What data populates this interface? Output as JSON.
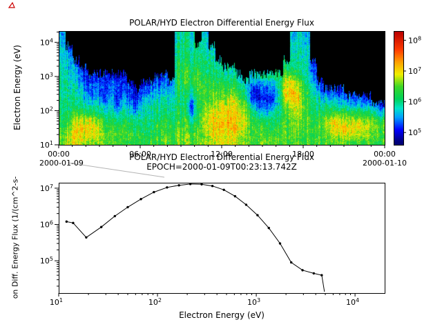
{
  "figure": {
    "bg_color": "#ffffff",
    "connector_line_color": "#b3b3b3",
    "red_marker_color": "#cc0000"
  },
  "chart_data": [
    {
      "type": "heatmap",
      "title": "POLAR/HYD  Electron Differential Energy Flux",
      "ylabel": "Electron Energy (eV)",
      "x_axis": {
        "hours_range": [
          0,
          24
        ],
        "tick_hours": [
          0,
          6,
          12,
          18,
          24
        ],
        "tick_labels": [
          "00:00",
          "06:00",
          "12:00",
          "18:00",
          "00:00"
        ],
        "date_left": "2000-01-09",
        "date_right": "2000-01-10"
      },
      "y_axis": {
        "base": "10",
        "log_range": [
          1,
          4.33
        ],
        "tick_exponents": [
          1,
          2,
          3,
          4
        ]
      },
      "colorbar": {
        "base": "10",
        "log_range": [
          4.6,
          8.3
        ],
        "tick_exponents": [
          5,
          6,
          7,
          8
        ]
      },
      "grid_log10_flux": {
        "time_bin_hours": 0.5,
        "energy_log10ev_range": [
          1.0,
          4.33
        ],
        "columns": [
          [
            6.5,
            6.5,
            6.4,
            6.3,
            6.2,
            6.1,
            6.1,
            6.0,
            6.0,
            6.0,
            5.9,
            5.9,
            5.8,
            5.8,
            5.7,
            5.6
          ],
          [
            6.8,
            6.7,
            6.5,
            6.3,
            6.1,
            6.0,
            6.0,
            5.9,
            5.9,
            5.8,
            5.7,
            5.6,
            5.5,
            5.3,
            0,
            0
          ],
          [
            6.9,
            7.0,
            7.0,
            6.8,
            6.3,
            6.0,
            5.9,
            5.8,
            5.7,
            5.6,
            5.4,
            5.2,
            0,
            0,
            0,
            0
          ],
          [
            6.8,
            7.0,
            7.1,
            6.9,
            6.4,
            6.0,
            5.8,
            5.6,
            5.5,
            5.3,
            5.1,
            0,
            0,
            0,
            0,
            0
          ],
          [
            6.7,
            6.9,
            7.0,
            6.8,
            6.2,
            5.8,
            5.5,
            5.3,
            5.2,
            5.1,
            0,
            0,
            0,
            0,
            0,
            0
          ],
          [
            6.6,
            6.8,
            6.9,
            6.6,
            6.1,
            5.9,
            5.6,
            5.4,
            5.3,
            5.1,
            0,
            0,
            0,
            0,
            0,
            0
          ],
          [
            6.5,
            6.6,
            6.5,
            6.3,
            6.0,
            5.6,
            5.2,
            5.1,
            5.2,
            5.2,
            0,
            0,
            0,
            0,
            0,
            0
          ],
          [
            6.5,
            6.5,
            6.4,
            6.2,
            6.0,
            5.8,
            5.8,
            5.5,
            5.3,
            5.1,
            0,
            0,
            0,
            0,
            0,
            0
          ],
          [
            6.4,
            6.5,
            6.4,
            6.1,
            5.8,
            5.3,
            5.1,
            5.2,
            5.3,
            5.0,
            0,
            0,
            0,
            0,
            0,
            0
          ],
          [
            6.4,
            6.4,
            6.3,
            6.1,
            5.9,
            5.7,
            5.4,
            5.2,
            5.1,
            5.0,
            0,
            0,
            0,
            0,
            0,
            0
          ],
          [
            6.3,
            6.4,
            6.2,
            6.0,
            5.8,
            5.5,
            5.2,
            5.1,
            5.0,
            0,
            0,
            0,
            0,
            0,
            0,
            0
          ],
          [
            6.3,
            6.3,
            6.1,
            5.9,
            5.6,
            5.3,
            5.1,
            5.0,
            0,
            0,
            0,
            0,
            0,
            0,
            0,
            0
          ],
          [
            6.3,
            6.2,
            6.1,
            6.0,
            5.9,
            5.8,
            5.6,
            5.3,
            5.1,
            0,
            0,
            0,
            0,
            0,
            0,
            0
          ],
          [
            6.4,
            6.3,
            6.2,
            6.1,
            6.0,
            5.9,
            5.7,
            5.5,
            5.2,
            0,
            0,
            0,
            0,
            0,
            0,
            0
          ],
          [
            6.4,
            6.4,
            6.3,
            6.2,
            6.1,
            6.0,
            5.8,
            5.6,
            5.3,
            5.1,
            0,
            0,
            0,
            0,
            0,
            0
          ],
          [
            6.5,
            6.4,
            6.3,
            6.2,
            6.1,
            6.0,
            5.9,
            5.6,
            5.4,
            5.2,
            0,
            0,
            0,
            0,
            0,
            0
          ],
          [
            6.4,
            6.3,
            6.2,
            6.1,
            6.0,
            5.9,
            5.7,
            5.5,
            5.3,
            0,
            0,
            0,
            0,
            0,
            0,
            0
          ],
          [
            6.5,
            6.5,
            6.4,
            6.3,
            6.2,
            6.1,
            6.0,
            6.0,
            6.1,
            6.2,
            6.2,
            6.1,
            6.0,
            6.0,
            5.9,
            5.8
          ],
          [
            6.6,
            6.6,
            6.5,
            6.4,
            6.3,
            6.2,
            6.2,
            6.3,
            6.4,
            6.4,
            6.3,
            6.2,
            6.2,
            6.1,
            6.0,
            6.0
          ],
          [
            6.5,
            6.4,
            6.3,
            5.9,
            5.4,
            5.2,
            5.5,
            6.0,
            6.2,
            6.3,
            6.2,
            6.1,
            6.0,
            5.9,
            5.9,
            5.8
          ],
          [
            6.6,
            6.5,
            6.4,
            6.3,
            6.2,
            6.2,
            6.3,
            6.4,
            6.5,
            6.4,
            6.3,
            6.2,
            6.1,
            6.0,
            0,
            0
          ],
          [
            6.7,
            6.7,
            6.8,
            6.9,
            6.8,
            6.6,
            6.5,
            6.4,
            6.4,
            6.3,
            6.2,
            6.1,
            6.0,
            5.9,
            5.9,
            5.8
          ],
          [
            6.8,
            6.9,
            7.0,
            7.0,
            6.9,
            6.7,
            6.5,
            6.4,
            6.3,
            6.2,
            6.1,
            6.0,
            5.9,
            5.8,
            0,
            0
          ],
          [
            6.8,
            7.0,
            7.1,
            7.1,
            7.0,
            6.8,
            6.6,
            6.4,
            6.2,
            6.1,
            6.0,
            5.9,
            0,
            0,
            0,
            0
          ],
          [
            6.9,
            7.0,
            7.1,
            7.2,
            7.1,
            6.9,
            6.7,
            6.5,
            6.3,
            6.1,
            5.9,
            0,
            0,
            0,
            0,
            0
          ],
          [
            6.8,
            7.0,
            7.1,
            7.1,
            7.0,
            7.0,
            6.8,
            6.5,
            6.2,
            6.0,
            5.8,
            0,
            0,
            0,
            0,
            0
          ],
          [
            6.7,
            6.9,
            7.0,
            7.0,
            6.9,
            6.8,
            6.6,
            6.3,
            6.0,
            5.8,
            0,
            0,
            0,
            0,
            0,
            0
          ],
          [
            6.6,
            6.7,
            6.8,
            6.8,
            6.7,
            6.5,
            6.2,
            6.0,
            5.8,
            0,
            0,
            0,
            0,
            0,
            0,
            0
          ],
          [
            6.5,
            6.5,
            6.4,
            6.3,
            6.1,
            5.7,
            5.3,
            5.1,
            5.5,
            5.8,
            0,
            0,
            0,
            0,
            0,
            0
          ],
          [
            6.4,
            6.4,
            6.3,
            6.1,
            5.8,
            5.2,
            5.0,
            5.0,
            5.3,
            5.7,
            0,
            0,
            0,
            0,
            0,
            0
          ],
          [
            6.4,
            6.3,
            6.2,
            6.0,
            5.6,
            5.1,
            5.0,
            5.1,
            5.4,
            5.8,
            0,
            0,
            0,
            0,
            0,
            0
          ],
          [
            6.4,
            6.3,
            6.2,
            6.1,
            5.9,
            5.4,
            5.2,
            5.3,
            5.6,
            5.9,
            0,
            0,
            0,
            0,
            0,
            0
          ],
          [
            6.4,
            6.4,
            6.3,
            6.2,
            6.1,
            6.0,
            5.9,
            6.0,
            6.1,
            6.0,
            0,
            0,
            0,
            0,
            0,
            0
          ],
          [
            6.5,
            6.5,
            6.4,
            6.4,
            6.5,
            6.7,
            7.0,
            7.1,
            7.0,
            6.8,
            6.3,
            6.0,
            0,
            0,
            0,
            0
          ],
          [
            6.5,
            6.6,
            6.6,
            6.6,
            6.8,
            7.0,
            7.2,
            7.2,
            7.0,
            6.6,
            6.2,
            6.0,
            5.9,
            5.8,
            5.8,
            5.7
          ],
          [
            6.5,
            6.5,
            6.5,
            6.6,
            6.7,
            6.8,
            6.9,
            6.8,
            6.6,
            6.3,
            6.1,
            6.0,
            5.9,
            5.9,
            5.8,
            5.8
          ],
          [
            6.4,
            6.4,
            6.4,
            6.5,
            6.5,
            6.4,
            6.3,
            6.2,
            6.1,
            6.0,
            5.9,
            5.9,
            5.8,
            5.8,
            5.7,
            5.6
          ],
          [
            6.4,
            6.3,
            6.3,
            6.2,
            6.1,
            6.0,
            5.9,
            5.8,
            5.6,
            5.4,
            5.2,
            5.1,
            0,
            0,
            0,
            0
          ],
          [
            6.4,
            6.4,
            6.5,
            6.4,
            6.2,
            6.0,
            5.8,
            5.5,
            5.2,
            0,
            0,
            0,
            0,
            0,
            0,
            0
          ],
          [
            6.5,
            6.6,
            6.8,
            6.7,
            6.3,
            6.0,
            5.7,
            5.3,
            0,
            0,
            0,
            0,
            0,
            0,
            0,
            0
          ],
          [
            6.5,
            6.8,
            7.0,
            6.9,
            6.4,
            6.0,
            5.6,
            5.2,
            0,
            0,
            0,
            0,
            0,
            0,
            0,
            0
          ],
          [
            6.5,
            6.9,
            7.1,
            6.9,
            6.4,
            5.9,
            5.5,
            5.1,
            0,
            0,
            0,
            0,
            0,
            0,
            0,
            0
          ],
          [
            6.5,
            6.9,
            7.0,
            6.8,
            6.3,
            5.8,
            5.4,
            0,
            0,
            0,
            0,
            0,
            0,
            0,
            0,
            0
          ],
          [
            6.4,
            6.8,
            7.0,
            6.8,
            6.3,
            5.8,
            5.3,
            0,
            0,
            0,
            0,
            0,
            0,
            0,
            0,
            0
          ],
          [
            6.4,
            6.7,
            6.9,
            6.7,
            6.2,
            5.7,
            5.2,
            0,
            0,
            0,
            0,
            0,
            0,
            0,
            0,
            0
          ],
          [
            6.4,
            6.6,
            6.8,
            6.6,
            6.1,
            5.6,
            5.1,
            0,
            0,
            0,
            0,
            0,
            0,
            0,
            0,
            0
          ],
          [
            6.3,
            6.5,
            6.6,
            6.4,
            6.0,
            5.5,
            0,
            0,
            0,
            0,
            0,
            0,
            0,
            0,
            0,
            0
          ],
          [
            6.3,
            6.4,
            6.4,
            6.2,
            5.8,
            5.2,
            0,
            0,
            0,
            0,
            0,
            0,
            0,
            0,
            0,
            0
          ]
        ]
      }
    },
    {
      "type": "line",
      "title": "POLAR/HYD  Electron Differential Energy Flux",
      "subtitle": "EPOCH=2000-01-09T00:23:13.742Z",
      "xlabel": "Electron Energy (eV)",
      "ylabel": "on Diff. Energy Flux (1/(cm^2-s-",
      "line_color": "#000000",
      "marker": "dot",
      "xlim_log": [
        1,
        4.3
      ],
      "ylim_log": [
        4.11,
        7.15
      ],
      "x_tick_exponents": [
        1,
        2,
        3,
        4
      ],
      "y_tick_exponents": [
        5,
        6,
        7
      ],
      "x_ev": [
        12,
        14,
        19,
        27,
        37,
        50,
        68,
        92,
        125,
        165,
        215,
        280,
        360,
        470,
        610,
        790,
        1030,
        1340,
        1740,
        2260,
        2940,
        3820,
        4600,
        4900
      ],
      "y_flux": [
        1200000.0,
        1100000.0,
        440000.0,
        850000.0,
        1700000.0,
        3000000.0,
        5000000.0,
        7800000.0,
        10500000.0,
        12000000.0,
        13000000.0,
        12800000.0,
        11500000.0,
        9000000.0,
        6000000.0,
        3500000.0,
        1800000.0,
        800000.0,
        300000.0,
        90000.0,
        55000.0,
        45000.0,
        40000.0,
        14000.0
      ]
    }
  ]
}
